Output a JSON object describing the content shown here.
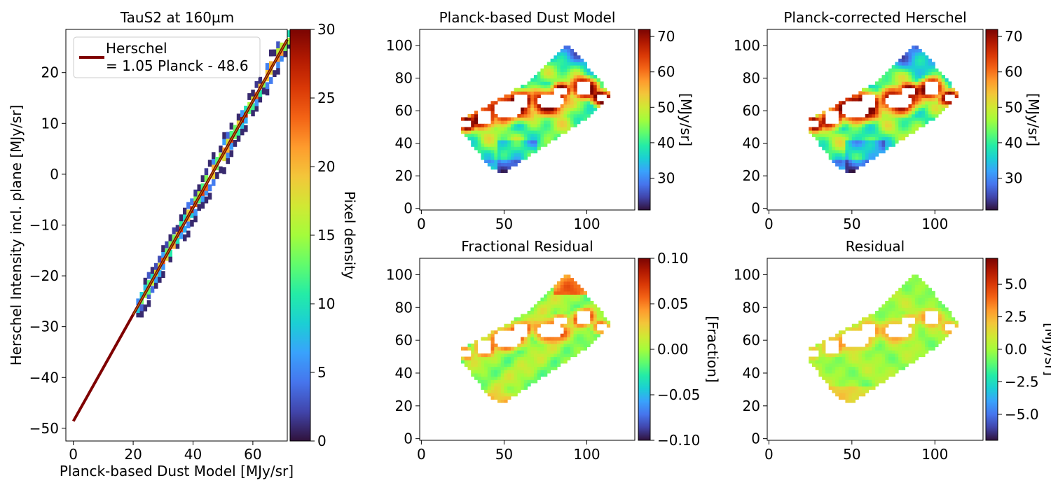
{
  "colors": {
    "turbo": [
      "#30123b",
      "#4145ab",
      "#4675ed",
      "#39a2fc",
      "#1bcfd4",
      "#24eca6",
      "#61fc6c",
      "#a4fc3b",
      "#d1e834",
      "#f3c63a",
      "#fe9b2d",
      "#f36315",
      "#d93806",
      "#b11901",
      "#7a0402"
    ],
    "fit_line": "#7f0000",
    "fit_line_core": "#c8b400"
  },
  "chart_data": [
    {
      "id": "scatter",
      "type": "heatmap",
      "title": "TauS2 at 160µm",
      "xlabel": "Planck-based Dust Model [MJy/sr]",
      "ylabel": "Herschel Intensity incl. plane [MJy/sr]",
      "xlim": [
        -2.5,
        71.5
      ],
      "ylim": [
        -52.5,
        28.5
      ],
      "xticks": [
        0,
        20,
        40,
        60
      ],
      "yticks": [
        -50,
        -40,
        -30,
        -20,
        -10,
        0,
        10,
        20
      ],
      "fit": {
        "slope": 1.05,
        "intercept": -48.6,
        "x_range": [
          0,
          71.5
        ]
      },
      "density_band": {
        "x_start": 21,
        "x_end": 71.5,
        "half_width_y": 2.6,
        "max_density": 30
      },
      "legend": {
        "position": "upper-left",
        "line1": "Herschel",
        "line2": "= 1.05 Planck - 48.6"
      },
      "colorbar": {
        "label": "Pixel density",
        "range": [
          0,
          30
        ],
        "ticks": [
          0,
          5,
          10,
          15,
          20,
          25,
          30
        ]
      }
    },
    {
      "id": "dust_model",
      "type": "heatmap",
      "title": "Planck-based Dust Model",
      "xlim": [
        -1,
        129
      ],
      "ylim": [
        -1,
        110
      ],
      "xticks": [
        0,
        50,
        100
      ],
      "yticks": [
        0,
        20,
        40,
        60,
        80,
        100
      ],
      "colorbar": {
        "label": "[MJy/sr]",
        "range": [
          21,
          72
        ],
        "ticks": [
          30,
          40,
          50,
          60,
          70
        ]
      },
      "field": "dust"
    },
    {
      "id": "corrected_herschel",
      "type": "heatmap",
      "title": "Planck-corrected Herschel",
      "xlim": [
        -1,
        129
      ],
      "ylim": [
        -1,
        110
      ],
      "xticks": [
        0,
        50,
        100
      ],
      "yticks": [
        0,
        20,
        40,
        60,
        80,
        100
      ],
      "colorbar": {
        "label": "[MJy/sr]",
        "range": [
          21,
          72
        ],
        "ticks": [
          30,
          40,
          50,
          60,
          70
        ]
      },
      "field": "herschel"
    },
    {
      "id": "fractional_residual",
      "type": "heatmap",
      "title": "Fractional Residual",
      "xlim": [
        -1,
        129
      ],
      "ylim": [
        -1,
        110
      ],
      "xticks": [
        0,
        50,
        100
      ],
      "yticks": [
        0,
        20,
        40,
        60,
        80,
        100
      ],
      "colorbar": {
        "label": "[Fraction]",
        "range": [
          -0.1,
          0.1
        ],
        "ticks": [
          -0.1,
          -0.05,
          0.0,
          0.05,
          0.1
        ],
        "ticklabels": [
          "−0.10",
          "−0.05",
          "0.00",
          "0.05",
          "0.10"
        ]
      },
      "field": "fraction"
    },
    {
      "id": "residual",
      "type": "heatmap",
      "title": "Residual",
      "xlim": [
        -1,
        129
      ],
      "ylim": [
        -1,
        110
      ],
      "xticks": [
        0,
        50,
        100
      ],
      "yticks": [
        0,
        20,
        40,
        60,
        80,
        100
      ],
      "colorbar": {
        "label": "[MJy/sr]",
        "range": [
          -7,
          7
        ],
        "ticks": [
          -5,
          -2.5,
          0,
          2.5,
          5
        ],
        "ticklabels": [
          "−5.0",
          "−2.5",
          "0.0",
          "2.5",
          "5.0"
        ]
      },
      "field": "residual"
    }
  ],
  "map_region": {
    "polygon": [
      [
        25,
        55
      ],
      [
        62,
        76
      ],
      [
        88,
        101
      ],
      [
        96,
        93
      ],
      [
        115,
        70
      ],
      [
        104,
        58
      ],
      [
        49,
        21
      ],
      [
        40,
        27
      ],
      [
        25,
        47
      ]
    ],
    "holes": [
      {
        "cx": 38,
        "cy": 56,
        "rx": 5,
        "ry": 4
      },
      {
        "cx": 52,
        "cy": 61,
        "rx": 9,
        "ry": 5
      },
      {
        "cx": 60,
        "cy": 66,
        "rx": 5,
        "ry": 4
      },
      {
        "cx": 78,
        "cy": 66,
        "rx": 8,
        "ry": 5
      },
      {
        "cx": 84,
        "cy": 72,
        "rx": 4,
        "ry": 3
      },
      {
        "cx": 98,
        "cy": 74,
        "rx": 5,
        "ry": 4
      },
      {
        "cx": 109,
        "cy": 68,
        "rx": 4,
        "ry": 3
      },
      {
        "cx": 27,
        "cy": 52,
        "rx": 3,
        "ry": 3
      }
    ]
  }
}
